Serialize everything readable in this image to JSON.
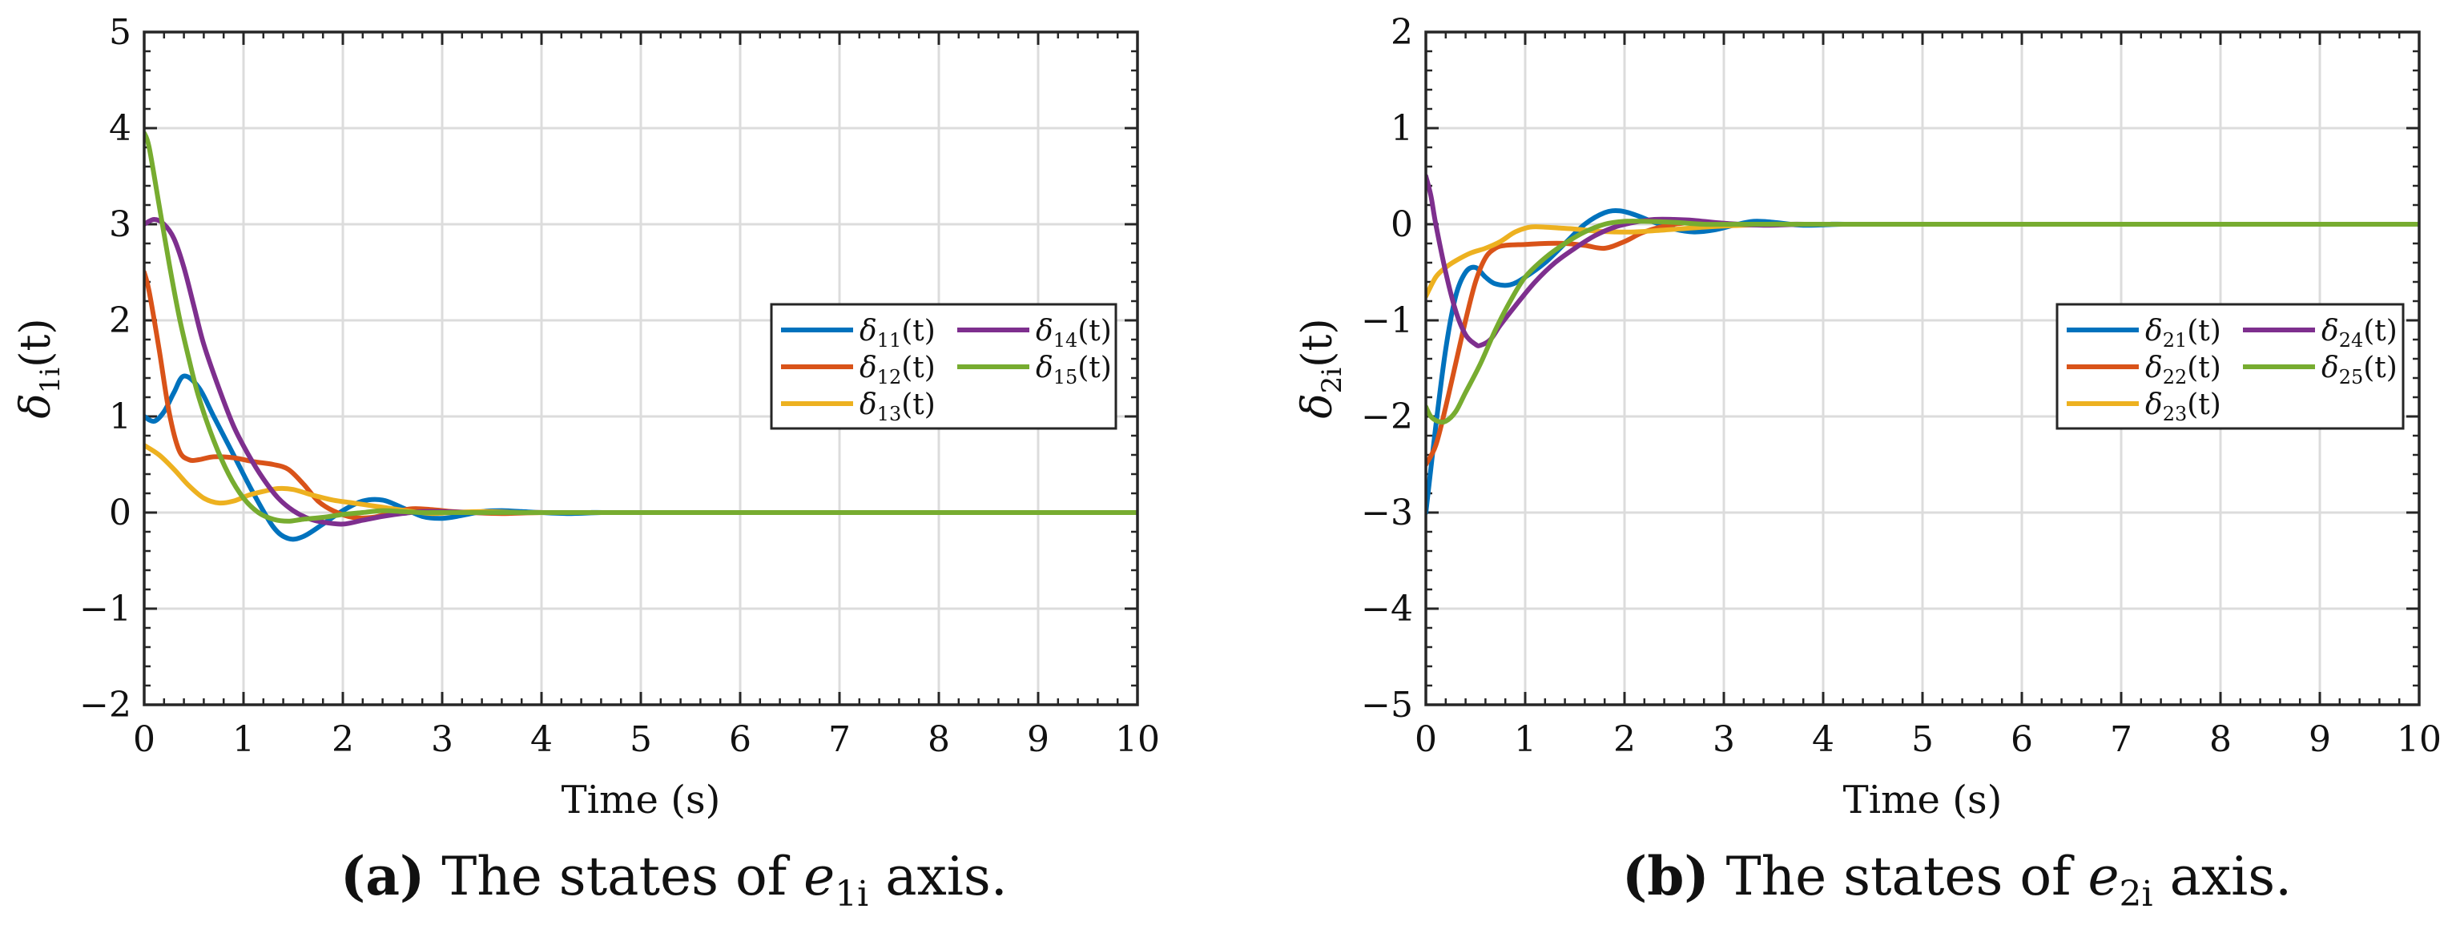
{
  "chart_data": [
    {
      "type": "line",
      "id": "a",
      "xlabel": "Time (s)",
      "ylabel_sym": "δ",
      "ylabel_sub": "1i",
      "xlim": [
        0,
        10
      ],
      "ylim": [
        -2,
        5
      ],
      "xticks": [
        0,
        1,
        2,
        3,
        4,
        5,
        6,
        7,
        8,
        9,
        10
      ],
      "yticks": [
        -2,
        -1,
        0,
        1,
        2,
        3,
        4,
        5
      ],
      "legend": "right-middle",
      "grid": true,
      "caption": {
        "letter": "(a)",
        "text": "The states of",
        "var": "e",
        "sub": "1i",
        "suffix": "axis."
      },
      "series": [
        {
          "name": "δ11(t)",
          "sub": "11",
          "color": "#0072BD",
          "x": [
            0,
            0.1,
            0.2,
            0.3,
            0.4,
            0.55,
            0.7,
            0.9,
            1.1,
            1.3,
            1.45,
            1.6,
            1.8,
            2.0,
            2.2,
            2.4,
            2.6,
            2.8,
            3.0,
            3.2,
            3.4,
            3.6,
            3.8,
            4.0,
            4.3,
            4.6,
            5,
            10
          ],
          "y": [
            1.0,
            0.95,
            1.05,
            1.25,
            1.42,
            1.3,
            1.0,
            0.6,
            0.2,
            -0.15,
            -0.27,
            -0.25,
            -0.12,
            0.02,
            0.12,
            0.13,
            0.05,
            -0.04,
            -0.06,
            -0.03,
            0.01,
            0.02,
            0.01,
            0,
            -0.01,
            0,
            0,
            0
          ]
        },
        {
          "name": "δ12(t)",
          "sub": "12",
          "color": "#D95319",
          "x": [
            0,
            0.05,
            0.15,
            0.25,
            0.35,
            0.45,
            0.55,
            0.7,
            0.9,
            1.1,
            1.3,
            1.45,
            1.6,
            1.75,
            1.9,
            2.1,
            2.3,
            2.5,
            2.7,
            2.9,
            3.1,
            3.3,
            3.6,
            4.0,
            4.5,
            10
          ],
          "y": [
            2.5,
            2.3,
            1.7,
            1.05,
            0.65,
            0.55,
            0.55,
            0.58,
            0.57,
            0.53,
            0.5,
            0.45,
            0.3,
            0.12,
            0.02,
            -0.05,
            -0.05,
            0.0,
            0.04,
            0.03,
            0.01,
            0,
            -0.01,
            0,
            0,
            0
          ]
        },
        {
          "name": "δ13(t)",
          "sub": "13",
          "color": "#EDB120",
          "x": [
            0,
            0.15,
            0.3,
            0.45,
            0.6,
            0.75,
            0.9,
            1.05,
            1.2,
            1.35,
            1.5,
            1.7,
            1.9,
            2.1,
            2.3,
            2.5,
            2.7,
            2.9,
            3.1,
            3.4,
            3.8,
            4.2,
            4.8,
            10
          ],
          "y": [
            0.7,
            0.6,
            0.45,
            0.28,
            0.15,
            0.1,
            0.12,
            0.18,
            0.22,
            0.25,
            0.24,
            0.18,
            0.13,
            0.1,
            0.07,
            0.04,
            0.01,
            -0.01,
            0,
            0.01,
            0,
            0,
            0,
            0
          ]
        },
        {
          "name": "δ14(t)",
          "sub": "14",
          "color": "#7E2F8E",
          "x": [
            0,
            0.1,
            0.2,
            0.3,
            0.4,
            0.5,
            0.6,
            0.75,
            0.9,
            1.05,
            1.2,
            1.35,
            1.5,
            1.65,
            1.8,
            2.0,
            2.2,
            2.4,
            2.6,
            2.8,
            3.0,
            3.3,
            3.6,
            4.0,
            4.5,
            10
          ],
          "y": [
            3.0,
            3.05,
            3.0,
            2.85,
            2.55,
            2.15,
            1.75,
            1.3,
            0.9,
            0.6,
            0.35,
            0.15,
            0.02,
            -0.06,
            -0.1,
            -0.12,
            -0.08,
            -0.04,
            -0.01,
            0.01,
            0.01,
            0,
            0,
            0,
            0,
            0
          ]
        },
        {
          "name": "δ15(t)",
          "sub": "15",
          "color": "#77AC30",
          "x": [
            0,
            0.05,
            0.15,
            0.25,
            0.35,
            0.45,
            0.55,
            0.7,
            0.85,
            1.0,
            1.15,
            1.3,
            1.45,
            1.6,
            1.8,
            2.0,
            2.2,
            2.4,
            2.6,
            2.8,
            3.0,
            3.5,
            4.0,
            10
          ],
          "y": [
            3.95,
            3.8,
            3.2,
            2.6,
            2.05,
            1.6,
            1.2,
            0.75,
            0.4,
            0.15,
            0.0,
            -0.07,
            -0.09,
            -0.07,
            -0.05,
            -0.02,
            0,
            0.02,
            0.01,
            0,
            0,
            0,
            0,
            0
          ]
        }
      ]
    },
    {
      "type": "line",
      "id": "b",
      "xlabel": "Time (s)",
      "ylabel_sym": "δ",
      "ylabel_sub": "2i",
      "xlim": [
        0,
        10
      ],
      "ylim": [
        -5,
        2
      ],
      "xticks": [
        0,
        1,
        2,
        3,
        4,
        5,
        6,
        7,
        8,
        9,
        10
      ],
      "yticks": [
        -5,
        -4,
        -3,
        -2,
        -1,
        0,
        1,
        2
      ],
      "legend": "right-middle",
      "grid": true,
      "caption": {
        "letter": "(b)",
        "text": "The states of",
        "var": "e",
        "sub": "2i",
        "suffix": "axis."
      },
      "series": [
        {
          "name": "δ21(t)",
          "sub": "21",
          "color": "#0072BD",
          "x": [
            0,
            0.1,
            0.2,
            0.3,
            0.4,
            0.5,
            0.6,
            0.7,
            0.85,
            1.0,
            1.2,
            1.4,
            1.6,
            1.8,
            1.95,
            2.1,
            2.3,
            2.5,
            2.7,
            2.9,
            3.1,
            3.3,
            3.5,
            3.8,
            4.2,
            4.6,
            10
          ],
          "y": [
            -3.0,
            -2.1,
            -1.3,
            -0.75,
            -0.5,
            -0.45,
            -0.55,
            -0.62,
            -0.63,
            -0.55,
            -0.4,
            -0.2,
            0.0,
            0.12,
            0.14,
            0.1,
            0.02,
            -0.05,
            -0.08,
            -0.06,
            -0.01,
            0.03,
            0.02,
            -0.01,
            0,
            0,
            0
          ]
        },
        {
          "name": "δ22(t)",
          "sub": "22",
          "color": "#D95319",
          "x": [
            0,
            0.1,
            0.2,
            0.3,
            0.4,
            0.5,
            0.6,
            0.7,
            0.8,
            1.0,
            1.2,
            1.4,
            1.6,
            1.8,
            2.0,
            2.2,
            2.5,
            2.8,
            3.1,
            3.5,
            4.0,
            10
          ],
          "y": [
            -2.5,
            -2.3,
            -1.9,
            -1.45,
            -1.0,
            -0.6,
            -0.35,
            -0.25,
            -0.22,
            -0.21,
            -0.2,
            -0.2,
            -0.22,
            -0.25,
            -0.18,
            -0.08,
            0.0,
            0.02,
            0.0,
            0,
            0,
            0
          ]
        },
        {
          "name": "δ23(t)",
          "sub": "23",
          "color": "#EDB120",
          "x": [
            0,
            0.1,
            0.2,
            0.3,
            0.45,
            0.6,
            0.75,
            0.9,
            1.05,
            1.2,
            1.35,
            1.5,
            1.7,
            1.9,
            2.1,
            2.4,
            2.8,
            3.2,
            3.6,
            4.0,
            10
          ],
          "y": [
            -0.75,
            -0.55,
            -0.45,
            -0.38,
            -0.3,
            -0.25,
            -0.18,
            -0.08,
            -0.03,
            -0.03,
            -0.04,
            -0.05,
            -0.07,
            -0.08,
            -0.08,
            -0.06,
            -0.03,
            -0.01,
            0,
            0,
            0
          ]
        },
        {
          "name": "δ24(t)",
          "sub": "24",
          "color": "#7E2F8E",
          "x": [
            0,
            0.05,
            0.1,
            0.2,
            0.3,
            0.4,
            0.5,
            0.55,
            0.65,
            0.75,
            0.9,
            1.1,
            1.3,
            1.5,
            1.7,
            1.9,
            2.1,
            2.3,
            2.5,
            2.7,
            3.0,
            3.4,
            3.8,
            4.2,
            10
          ],
          "y": [
            0.5,
            0.3,
            0.0,
            -0.5,
            -0.9,
            -1.15,
            -1.25,
            -1.26,
            -1.2,
            -1.05,
            -0.85,
            -0.6,
            -0.4,
            -0.25,
            -0.12,
            -0.03,
            0.02,
            0.05,
            0.05,
            0.04,
            0.01,
            -0.01,
            0,
            0,
            0
          ]
        },
        {
          "name": "δ25(t)",
          "sub": "25",
          "color": "#77AC30",
          "x": [
            0,
            0.05,
            0.12,
            0.2,
            0.3,
            0.4,
            0.55,
            0.7,
            0.85,
            1.0,
            1.2,
            1.4,
            1.6,
            1.8,
            2.0,
            2.2,
            2.5,
            2.8,
            3.2,
            3.6,
            4.0,
            10
          ],
          "y": [
            -1.9,
            -2.0,
            -2.05,
            -2.05,
            -1.95,
            -1.75,
            -1.45,
            -1.1,
            -0.8,
            -0.55,
            -0.35,
            -0.2,
            -0.08,
            0.0,
            0.03,
            0.03,
            0.02,
            0,
            0,
            0,
            0,
            0
          ]
        }
      ]
    }
  ]
}
